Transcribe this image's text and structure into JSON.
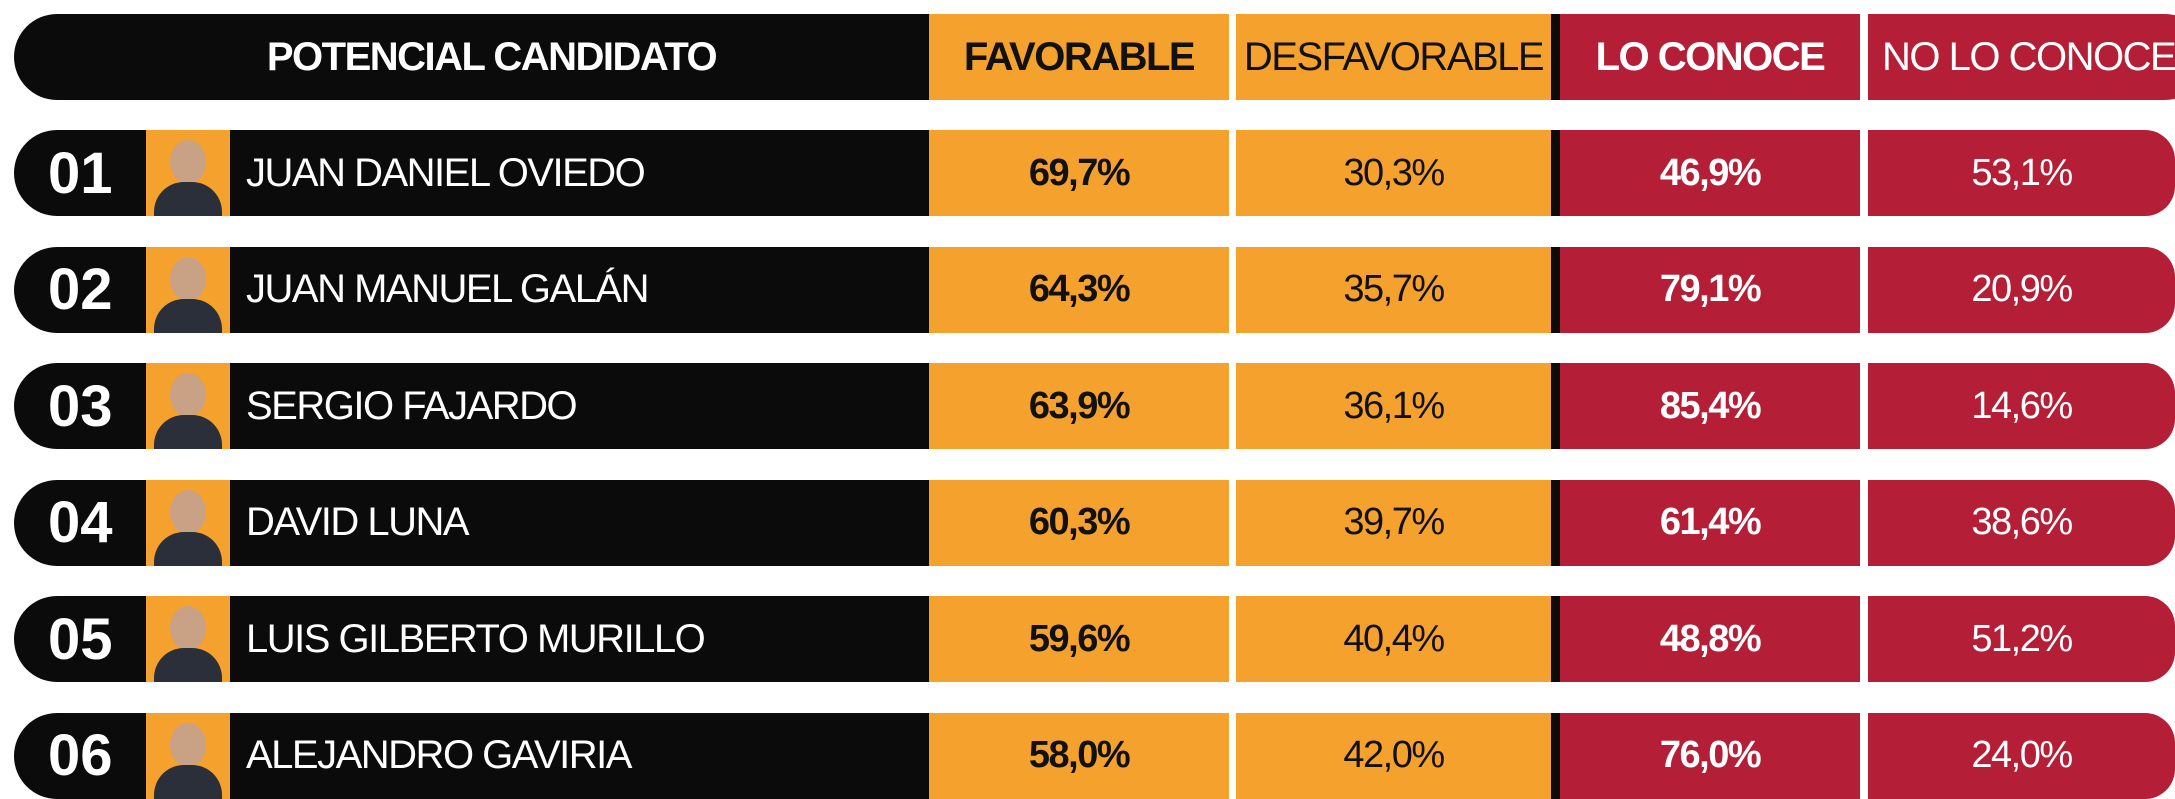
{
  "table": {
    "columns": [
      "POTENCIAL CANDIDATO",
      "FAVORABLE",
      "DESFAVORABLE",
      "LO CONOCE",
      "NO LO CONOCE"
    ],
    "rows": [
      [
        "01",
        "JUAN DANIEL OVIEDO",
        "69,7%",
        "30,3%",
        "46,9%",
        "53,1%"
      ],
      [
        "02",
        "JUAN MANUEL GALÁN",
        "64,3%",
        "35,7%",
        "79,1%",
        "20,9%"
      ],
      [
        "03",
        "SERGIO FAJARDO",
        "63,9%",
        "36,1%",
        "85,4%",
        "14,6%"
      ],
      [
        "04",
        "DAVID LUNA",
        "60,3%",
        "39,7%",
        "61,4%",
        "38,6%"
      ],
      [
        "05",
        "LUIS GILBERTO MURILLO",
        "59,6%",
        "40,4%",
        "48,8%",
        "51,2%"
      ],
      [
        "06",
        "ALEJANDRO GAVIRIA",
        "58,0%",
        "42,0%",
        "76,0%",
        "24,0%"
      ]
    ]
  }
}
